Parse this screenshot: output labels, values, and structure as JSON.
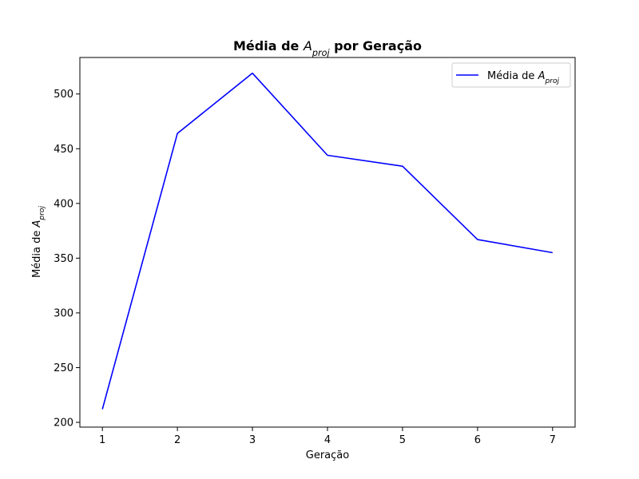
{
  "chart_data": {
    "type": "line",
    "title": {
      "prefix": "Média de ",
      "symbol": "A",
      "subscript": "proj",
      "suffix": " por Geração"
    },
    "xlabel": "Geração",
    "ylabel": {
      "prefix": "Média de ",
      "symbol": "A",
      "subscript": "proj"
    },
    "x": [
      1,
      2,
      3,
      4,
      5,
      6,
      7
    ],
    "series": [
      {
        "name": {
          "prefix": "Média de ",
          "symbol": "A",
          "subscript": "proj"
        },
        "color": "#0000ff",
        "values": [
          212,
          464,
          519,
          444,
          434,
          367,
          355
        ]
      }
    ],
    "xlim": [
      0.7,
      7.3
    ],
    "ylim": [
      195.65,
      533.35
    ],
    "xticks": [
      1,
      2,
      3,
      4,
      5,
      6,
      7
    ],
    "yticks": [
      200,
      250,
      300,
      350,
      400,
      450,
      500
    ],
    "grid": false,
    "legend": "top-right"
  }
}
